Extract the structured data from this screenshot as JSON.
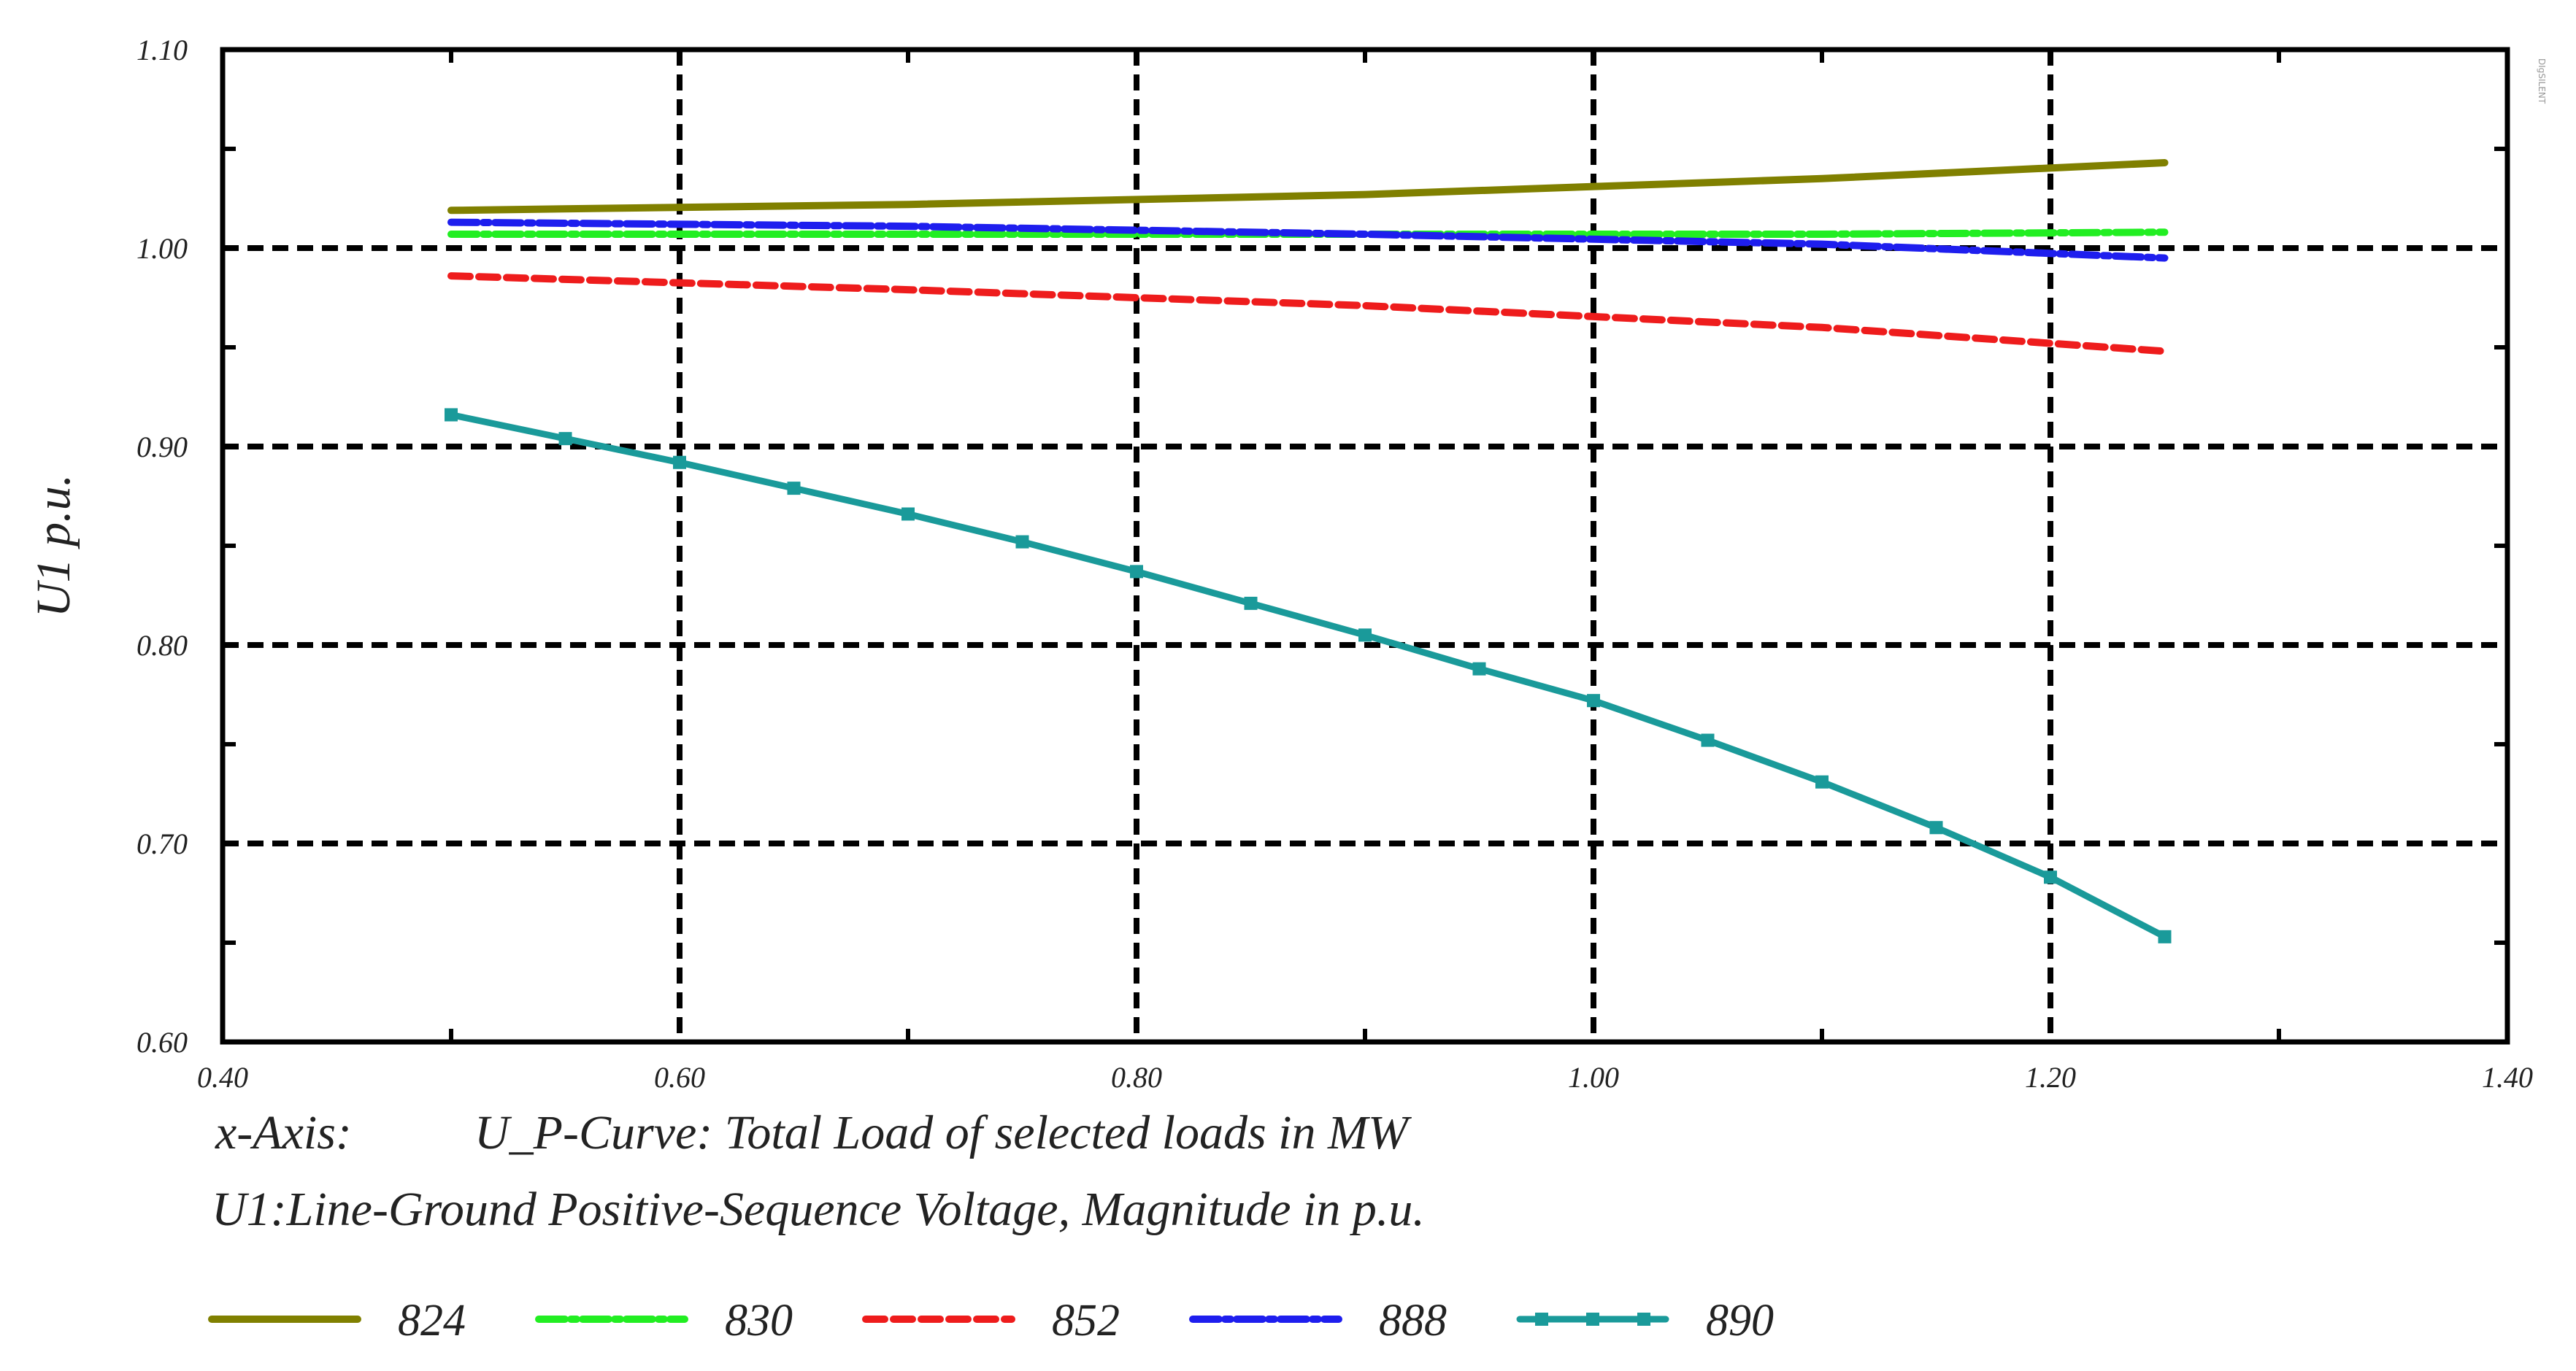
{
  "chart_data": {
    "type": "line",
    "title": "",
    "xlabel": "U_P-Curve: Total Load of selected loads in MW",
    "ylabel": "U1 p.u.",
    "x_axis_caption": "x-Axis:",
    "y_description": "U1:Line-Ground Positive-Sequence Voltage, Magnitude in p.u.",
    "xlim": [
      0.4,
      1.4
    ],
    "ylim": [
      0.6,
      1.1
    ],
    "x_ticks": [
      "0.40",
      "0.60",
      "0.80",
      "1.00",
      "1.20",
      "1.40"
    ],
    "y_ticks": [
      "0.60",
      "0.70",
      "0.80",
      "0.90",
      "1.00",
      "1.10"
    ],
    "grid": true,
    "legend_position": "bottom",
    "series": [
      {
        "name": "824",
        "color": "#808000",
        "style": "solid",
        "x": [
          0.5,
          0.7,
          0.9,
          1.1,
          1.25
        ],
        "y": [
          1.019,
          1.022,
          1.027,
          1.035,
          1.043
        ]
      },
      {
        "name": "830",
        "color": "#22ee22",
        "style": "dash-dot",
        "x": [
          0.5,
          0.7,
          0.9,
          1.1,
          1.25
        ],
        "y": [
          1.007,
          1.007,
          1.007,
          1.007,
          1.008
        ]
      },
      {
        "name": "852",
        "color": "#ee1c1c",
        "style": "dashed",
        "x": [
          0.5,
          0.7,
          0.9,
          1.1,
          1.25
        ],
        "y": [
          0.986,
          0.979,
          0.971,
          0.96,
          0.948
        ]
      },
      {
        "name": "888",
        "color": "#1e1eee",
        "style": "dash-dot",
        "x": [
          0.5,
          0.7,
          0.9,
          1.1,
          1.25
        ],
        "y": [
          1.013,
          1.011,
          1.007,
          1.002,
          0.995
        ]
      },
      {
        "name": "890",
        "color": "#1a9a9a",
        "style": "marker",
        "x": [
          0.5,
          0.55,
          0.6,
          0.65,
          0.7,
          0.75,
          0.8,
          0.85,
          0.9,
          0.95,
          1.0,
          1.05,
          1.1,
          1.15,
          1.2,
          1.25
        ],
        "y": [
          0.916,
          0.904,
          0.892,
          0.879,
          0.866,
          0.852,
          0.837,
          0.821,
          0.805,
          0.788,
          0.772,
          0.752,
          0.731,
          0.708,
          0.683,
          0.653
        ]
      }
    ]
  },
  "side_label": "DIgSILENT"
}
